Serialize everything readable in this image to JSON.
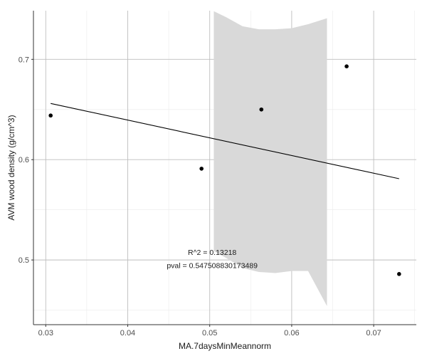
{
  "chart_data": {
    "type": "scatter",
    "xlabel": "MA.7daysMinMeannorm",
    "ylabel": "AVM wood density (g/cm^3)",
    "xlim": [
      0.0285,
      0.0752
    ],
    "ylim": [
      0.4355,
      0.7485
    ],
    "xticks": [
      0.03,
      0.04,
      0.05,
      0.06,
      0.07
    ],
    "xtick_labels": [
      "0.03",
      "0.04",
      "0.05",
      "0.06",
      "0.07"
    ],
    "yticks": [
      0.5,
      0.6,
      0.7
    ],
    "ytick_labels": [
      "0.5",
      "0.6",
      "0.7"
    ],
    "grid": true,
    "points": [
      {
        "x": 0.0306,
        "y": 0.644
      },
      {
        "x": 0.049,
        "y": 0.591
      },
      {
        "x": 0.0563,
        "y": 0.65
      },
      {
        "x": 0.0667,
        "y": 0.693
      },
      {
        "x": 0.0731,
        "y": 0.486
      }
    ],
    "regression_line": {
      "x": [
        0.0306,
        0.0731
      ],
      "y": [
        0.656,
        0.581
      ]
    },
    "confidence_band": {
      "x": [
        0.0505,
        0.052,
        0.054,
        0.056,
        0.058,
        0.06,
        0.062,
        0.0643
      ],
      "upper": [
        0.748,
        0.742,
        0.733,
        0.73,
        0.73,
        0.731,
        0.735,
        0.741
      ],
      "lower": [
        0.509,
        0.502,
        0.492,
        0.488,
        0.487,
        0.489,
        0.489,
        0.454
      ]
    },
    "annotations": [
      {
        "text": "R^2 =  0.13218",
        "x": 0.0503,
        "y": 0.505
      },
      {
        "text": "pval = 0.547508830173489",
        "x": 0.0503,
        "y": 0.492
      }
    ],
    "colors": {
      "points": "#000000",
      "line": "#000000",
      "band": "#d9d9d9",
      "grid_major": "#bebebe",
      "grid_minor": "#ebebeb",
      "axis": "#333333"
    }
  }
}
